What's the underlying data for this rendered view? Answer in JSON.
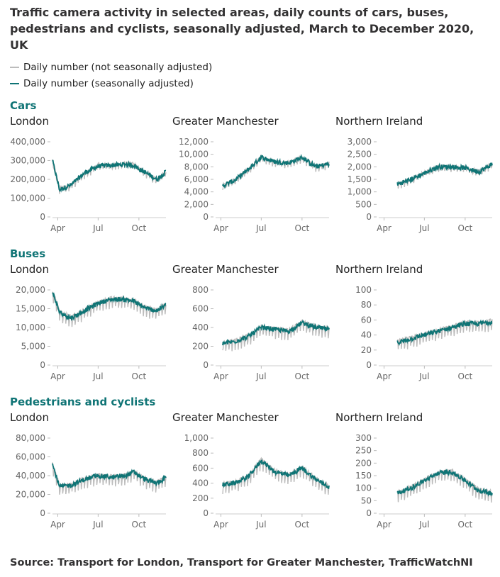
{
  "title": "Traffic camera activity in selected areas, daily counts of cars, buses, pedestrians and cyclists, seasonally adjusted, March to December 2020, UK",
  "source": "Source: Transport for London, Transport for Greater Manchester, TrafficWatchNI",
  "colors": {
    "raw": "#bcbcbc",
    "sa": "#0f7475",
    "heading": "#0f7475",
    "axis": "#666666"
  },
  "legend": [
    {
      "label": "Daily number (not seasonally adjusted)",
      "color": "#bcbcbc"
    },
    {
      "label": "Daily number (seasonally adjusted)",
      "color": "#0f7475"
    }
  ],
  "groups": [
    {
      "title": "Cars",
      "panels": [
        "London",
        "Greater Manchester",
        "Northern Ireland"
      ]
    },
    {
      "title": "Buses",
      "panels": [
        "London",
        "Greater Manchester",
        "Northern Ireland"
      ]
    },
    {
      "title": "Pedestrians and cyclists",
      "panels": [
        "London",
        "Greater Manchester",
        "Northern Ireland"
      ]
    }
  ],
  "chart_data": [
    {
      "type": "line",
      "group": "Cars",
      "title": "London",
      "xlim": [
        "2020-03-20",
        "2020-12-01"
      ],
      "xticks": [
        "Apr",
        "Jul",
        "Oct"
      ],
      "ylim": [
        0,
        400000
      ],
      "yticks": [
        "0",
        "100,000",
        "200,000",
        "300,000",
        "400,000"
      ],
      "x": [
        "2020-03-20",
        "2020-04-05",
        "2020-05-01",
        "2020-06-01",
        "2020-07-01",
        "2020-08-01",
        "2020-09-01",
        "2020-09-20",
        "2020-10-01",
        "2020-10-20",
        "2020-11-10",
        "2020-12-01"
      ],
      "series": [
        {
          "name": "Daily number (not seasonally adjusted)",
          "values": [
            300000,
            150000,
            170000,
            230000,
            275000,
            275000,
            280000,
            285000,
            260000,
            230000,
            195000,
            240000
          ]
        },
        {
          "name": "Daily number (seasonally adjusted)",
          "values": [
            300000,
            145000,
            170000,
            235000,
            270000,
            275000,
            280000,
            275000,
            255000,
            230000,
            200000,
            240000
          ]
        }
      ]
    },
    {
      "type": "line",
      "group": "Cars",
      "title": "Greater Manchester",
      "xlim": [
        "2020-03-20",
        "2020-12-01"
      ],
      "xticks": [
        "Apr",
        "Jul",
        "Oct"
      ],
      "ylim": [
        0,
        12000
      ],
      "yticks": [
        "0",
        "2,000",
        "4,000",
        "6,000",
        "8,000",
        "10,000",
        "12,000"
      ],
      "x": [
        "2020-04-05",
        "2020-05-01",
        "2020-06-01",
        "2020-07-01",
        "2020-08-01",
        "2020-09-01",
        "2020-10-01",
        "2020-11-01",
        "2020-12-01"
      ],
      "series": [
        {
          "name": "Daily number (not seasonally adjusted)",
          "values": [
            5000,
            5800,
            7500,
            9500,
            8800,
            8600,
            9500,
            8000,
            8500
          ]
        },
        {
          "name": "Daily number (seasonally adjusted)",
          "values": [
            5000,
            5800,
            7500,
            9500,
            8800,
            8600,
            9500,
            8000,
            8500
          ]
        }
      ]
    },
    {
      "type": "line",
      "group": "Cars",
      "title": "Northern Ireland",
      "xlim": [
        "2020-03-20",
        "2020-12-01"
      ],
      "xticks": [
        "Apr",
        "Jul",
        "Oct"
      ],
      "ylim": [
        0,
        3000
      ],
      "yticks": [
        "0",
        "500",
        "1,000",
        "1,500",
        "2,000",
        "2,500",
        "3,000"
      ],
      "x": [
        "2020-05-01",
        "2020-06-01",
        "2020-07-01",
        "2020-08-01",
        "2020-09-01",
        "2020-10-01",
        "2020-11-01",
        "2020-12-01"
      ],
      "series": [
        {
          "name": "Daily number (not seasonally adjusted)",
          "values": [
            1300,
            1500,
            1750,
            2000,
            2000,
            1950,
            1800,
            2100
          ]
        },
        {
          "name": "Daily number (seasonally adjusted)",
          "values": [
            1300,
            1500,
            1750,
            2000,
            2000,
            1950,
            1800,
            2100
          ]
        }
      ]
    },
    {
      "type": "line",
      "group": "Buses",
      "title": "London",
      "xlim": [
        "2020-03-20",
        "2020-12-01"
      ],
      "xticks": [
        "Apr",
        "Jul",
        "Oct"
      ],
      "ylim": [
        0,
        20000
      ],
      "yticks": [
        "0",
        "5,000",
        "10,000",
        "15,000",
        "20,000"
      ],
      "x": [
        "2020-03-20",
        "2020-04-05",
        "2020-05-01",
        "2020-06-01",
        "2020-07-01",
        "2020-08-01",
        "2020-09-01",
        "2020-09-20",
        "2020-10-01",
        "2020-10-20",
        "2020-11-10",
        "2020-12-01"
      ],
      "series": [
        {
          "name": "Daily number (not seasonally adjusted)",
          "values": [
            19500,
            14000,
            12500,
            14500,
            16500,
            17500,
            17500,
            17000,
            16000,
            15000,
            14500,
            16000
          ]
        },
        {
          "name": "Daily number (seasonally adjusted)",
          "values": [
            19500,
            14000,
            12500,
            14500,
            16500,
            17500,
            17500,
            17000,
            16000,
            15000,
            14500,
            16000
          ]
        }
      ]
    },
    {
      "type": "line",
      "group": "Buses",
      "title": "Greater Manchester",
      "xlim": [
        "2020-03-20",
        "2020-12-01"
      ],
      "xticks": [
        "Apr",
        "Jul",
        "Oct"
      ],
      "ylim": [
        0,
        800
      ],
      "yticks": [
        "0",
        "200",
        "400",
        "600",
        "800"
      ],
      "x": [
        "2020-04-05",
        "2020-05-01",
        "2020-06-01",
        "2020-07-01",
        "2020-08-01",
        "2020-09-01",
        "2020-10-01",
        "2020-11-01",
        "2020-12-01"
      ],
      "series": [
        {
          "name": "Daily number (not seasonally adjusted)",
          "values": [
            230,
            250,
            300,
            400,
            380,
            360,
            450,
            400,
            380
          ]
        },
        {
          "name": "Daily number (seasonally adjusted)",
          "values": [
            230,
            250,
            300,
            400,
            380,
            360,
            450,
            400,
            380
          ]
        }
      ]
    },
    {
      "type": "line",
      "group": "Buses",
      "title": "Northern Ireland",
      "xlim": [
        "2020-03-20",
        "2020-12-01"
      ],
      "xticks": [
        "Apr",
        "Jul",
        "Oct"
      ],
      "ylim": [
        0,
        100
      ],
      "yticks": [
        "0",
        "20",
        "40",
        "60",
        "80",
        "100"
      ],
      "x": [
        "2020-05-01",
        "2020-06-01",
        "2020-07-01",
        "2020-08-01",
        "2020-09-01",
        "2020-10-01",
        "2020-11-01",
        "2020-12-01"
      ],
      "series": [
        {
          "name": "Daily number (not seasonally adjusted)",
          "values": [
            30,
            35,
            40,
            45,
            50,
            55,
            55,
            58
          ]
        },
        {
          "name": "Daily number (seasonally adjusted)",
          "values": [
            30,
            35,
            40,
            45,
            50,
            55,
            55,
            58
          ]
        }
      ]
    },
    {
      "type": "line",
      "group": "Pedestrians and cyclists",
      "title": "London",
      "xlim": [
        "2020-03-20",
        "2020-12-01"
      ],
      "xticks": [
        "Apr",
        "Jul",
        "Oct"
      ],
      "ylim": [
        0,
        80000
      ],
      "yticks": [
        "0",
        "20,000",
        "40,000",
        "60,000",
        "80,000"
      ],
      "x": [
        "2020-03-20",
        "2020-04-05",
        "2020-05-01",
        "2020-06-01",
        "2020-07-01",
        "2020-08-01",
        "2020-09-01",
        "2020-09-20",
        "2020-10-01",
        "2020-10-20",
        "2020-11-10",
        "2020-12-01"
      ],
      "series": [
        {
          "name": "Daily number (not seasonally adjusted)",
          "values": [
            52000,
            28000,
            30000,
            36000,
            40000,
            38000,
            40000,
            44000,
            40000,
            35000,
            32000,
            38000
          ]
        },
        {
          "name": "Daily number (seasonally adjusted)",
          "values": [
            52000,
            28000,
            30000,
            36000,
            40000,
            38000,
            40000,
            44000,
            40000,
            35000,
            32000,
            38000
          ]
        }
      ]
    },
    {
      "type": "line",
      "group": "Pedestrians and cyclists",
      "title": "Greater Manchester",
      "xlim": [
        "2020-03-20",
        "2020-12-01"
      ],
      "xticks": [
        "Apr",
        "Jul",
        "Oct"
      ],
      "ylim": [
        0,
        1000
      ],
      "yticks": [
        "0",
        "200",
        "400",
        "600",
        "800",
        "1,000"
      ],
      "x": [
        "2020-04-05",
        "2020-05-01",
        "2020-06-01",
        "2020-07-01",
        "2020-08-01",
        "2020-09-01",
        "2020-10-01",
        "2020-11-01",
        "2020-12-01"
      ],
      "series": [
        {
          "name": "Daily number (not seasonally adjusted)",
          "values": [
            380,
            400,
            480,
            700,
            550,
            500,
            600,
            450,
            350
          ]
        },
        {
          "name": "Daily number (seasonally adjusted)",
          "values": [
            380,
            400,
            480,
            700,
            550,
            500,
            600,
            450,
            350
          ]
        }
      ]
    },
    {
      "type": "line",
      "group": "Pedestrians and cyclists",
      "title": "Northern Ireland",
      "xlim": [
        "2020-03-20",
        "2020-12-01"
      ],
      "xticks": [
        "Apr",
        "Jul",
        "Oct"
      ],
      "ylim": [
        0,
        300
      ],
      "yticks": [
        "0",
        "50",
        "100",
        "150",
        "200",
        "250",
        "300"
      ],
      "x": [
        "2020-05-01",
        "2020-06-01",
        "2020-07-01",
        "2020-08-01",
        "2020-09-01",
        "2020-10-01",
        "2020-11-01",
        "2020-12-01"
      ],
      "series": [
        {
          "name": "Daily number (not seasonally adjusted)",
          "values": [
            80,
            100,
            130,
            160,
            165,
            130,
            90,
            80
          ]
        },
        {
          "name": "Daily number (seasonally adjusted)",
          "values": [
            80,
            100,
            130,
            160,
            165,
            130,
            90,
            80
          ]
        }
      ]
    }
  ]
}
